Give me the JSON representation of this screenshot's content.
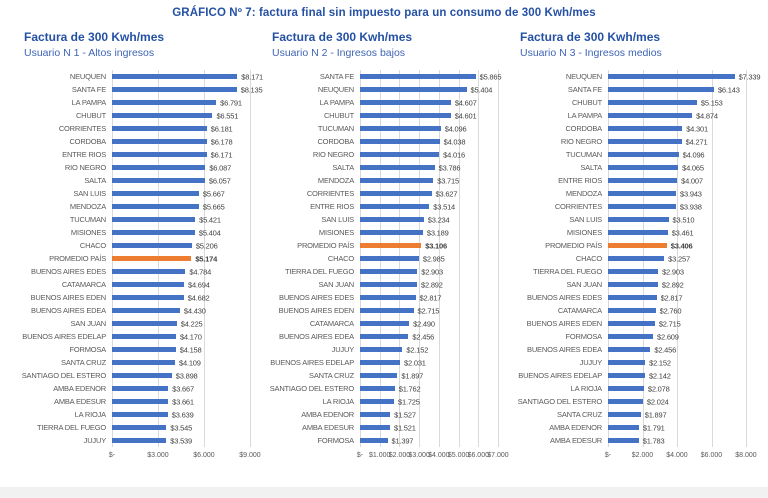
{
  "page": {
    "title": "GRÁFICO Nº 7: factura final sin impuesto para un consumo de 300 Kwh/mes"
  },
  "colors": {
    "bar": "#4472C4",
    "average_bar": "#ED7D31",
    "heading": "#2551A5",
    "subheading": "#3E64B5",
    "grid": "#D9D9D9",
    "category_label": "#595959",
    "value_label": "#3F3F3F",
    "footer_strip": "#F1F1F1"
  },
  "chart_data": [
    {
      "type": "bar",
      "orientation": "horizontal",
      "title": "Factura de 300 Kwh/mes",
      "subtitle": "Usuario N 1 - Altos ingresos",
      "xlim": [
        0,
        9000
      ],
      "grid": true,
      "average_index": 14,
      "ticks": [
        {
          "value": 0,
          "label": "$-"
        },
        {
          "value": 3000,
          "label": "$3.000"
        },
        {
          "value": 6000,
          "label": "$6.000"
        },
        {
          "value": 9000,
          "label": "$9.000"
        }
      ],
      "categories": [
        "NEUQUEN",
        "SANTA FE",
        "LA PAMPA",
        "CHUBUT",
        "CORRIENTES",
        "CORDOBA",
        "ENTRE RIOS",
        "RIO NEGRO",
        "SALTA",
        "SAN LUIS",
        "MENDOZA",
        "TUCUMAN",
        "MISIONES",
        "CHACO",
        "PROMEDIO PAÍS",
        "BUENOS AIRES EDES",
        "CATAMARCA",
        "BUENOS AIRES EDEN",
        "BUENOS AIRES EDEA",
        "SAN JUAN",
        "BUENOS AIRES EDELAP",
        "FORMOSA",
        "SANTA CRUZ",
        "SANTIAGO DEL ESTERO",
        "AMBA EDENOR",
        "AMBA EDESUR",
        "LA RIOJA",
        "TIERRA DEL FUEGO",
        "JUJUY"
      ],
      "values": [
        8171,
        8135,
        6791,
        6551,
        6181,
        6178,
        6171,
        6087,
        6057,
        5667,
        5665,
        5421,
        5404,
        5206,
        5174,
        4784,
        4694,
        4682,
        4430,
        4225,
        4170,
        4158,
        4109,
        3898,
        3667,
        3661,
        3639,
        3545,
        3539
      ],
      "value_labels": [
        "$8.171",
        "$8.135",
        "$6.791",
        "$6.551",
        "$6.181",
        "$6.178",
        "$6.171",
        "$6.087",
        "$6.057",
        "$5.667",
        "$5.665",
        "$5.421",
        "$5.404",
        "$5.206",
        "$5.174",
        "$4.784",
        "$4.694",
        "$4.682",
        "$4.430",
        "$4.225",
        "$4.170",
        "$4.158",
        "$4.109",
        "$3.898",
        "$3.667",
        "$3.661",
        "$3.639",
        "$3.545",
        "$3.539"
      ]
    },
    {
      "type": "bar",
      "orientation": "horizontal",
      "title": "Factura de 300 Kwh/mes",
      "subtitle": "Usuario N 2 - Ingresos bajos",
      "xlim": [
        0,
        7000
      ],
      "grid": true,
      "average_index": 13,
      "ticks": [
        {
          "value": 0,
          "label": "$-"
        },
        {
          "value": 1000,
          "label": "$1.000"
        },
        {
          "value": 2000,
          "label": "$2.000"
        },
        {
          "value": 3000,
          "label": "$3.000"
        },
        {
          "value": 4000,
          "label": "$4.000"
        },
        {
          "value": 5000,
          "label": "$5.000"
        },
        {
          "value": 6000,
          "label": "$6.000"
        },
        {
          "value": 7000,
          "label": "$7.000"
        }
      ],
      "categories": [
        "SANTA FE",
        "NEUQUEN",
        "LA PAMPA",
        "CHUBUT",
        "TUCUMAN",
        "CORDOBA",
        "RIO NEGRO",
        "SALTA",
        "MENDOZA",
        "CORRIENTES",
        "ENTRE RIOS",
        "SAN LUIS",
        "MISIONES",
        "PROMEDIO PAÍS",
        "CHACO",
        "TIERRA DEL FUEGO",
        "SAN JUAN",
        "BUENOS AIRES EDES",
        "BUENOS AIRES EDEN",
        "CATAMARCA",
        "BUENOS AIRES EDEA",
        "JUJUY",
        "BUENOS AIRES EDELAP",
        "SANTA CRUZ",
        "SANTIAGO DEL ESTERO",
        "LA RIOJA",
        "AMBA EDENOR",
        "AMBA EDESUR",
        "FORMOSA"
      ],
      "values": [
        5865,
        5404,
        4607,
        4601,
        4096,
        4038,
        4016,
        3786,
        3715,
        3627,
        3514,
        3234,
        3189,
        3106,
        2985,
        2903,
        2892,
        2817,
        2715,
        2490,
        2456,
        2152,
        2031,
        1897,
        1762,
        1725,
        1527,
        1521,
        1397
      ],
      "value_labels": [
        "$5.865",
        "$5.404",
        "$4.607",
        "$4.601",
        "$4.096",
        "$4.038",
        "$4.016",
        "$3.786",
        "$3.715",
        "$3.627",
        "$3.514",
        "$3.234",
        "$3.189",
        "$3.106",
        "$2.985",
        "$2.903",
        "$2.892",
        "$2.817",
        "$2.715",
        "$2.490",
        "$2.456",
        "$2.152",
        "$2.031",
        "$1.897",
        "$1.762",
        "$1.725",
        "$1.527",
        "$1.521",
        "$1.397"
      ]
    },
    {
      "type": "bar",
      "orientation": "horizontal",
      "title": "Factura de 300 Kwh/mes",
      "subtitle": "Usuario N 3 - Ingresos medios",
      "xlim": [
        0,
        8000
      ],
      "grid": true,
      "average_index": 13,
      "ticks": [
        {
          "value": 0,
          "label": "$-"
        },
        {
          "value": 2000,
          "label": "$2.000"
        },
        {
          "value": 4000,
          "label": "$4.000"
        },
        {
          "value": 6000,
          "label": "$6.000"
        },
        {
          "value": 8000,
          "label": "$8.000"
        }
      ],
      "categories": [
        "NEUQUEN",
        "SANTA FE",
        "CHUBUT",
        "LA PAMPA",
        "CORDOBA",
        "RIO NEGRO",
        "TUCUMAN",
        "SALTA",
        "ENTRE RIOS",
        "MENDOZA",
        "CORRIENTES",
        "SAN LUIS",
        "MISIONES",
        "PROMEDIO PAÍS",
        "CHACO",
        "TIERRA DEL FUEGO",
        "SAN JUAN",
        "BUENOS AIRES EDES",
        "CATAMARCA",
        "BUENOS AIRES EDEN",
        "FORMOSA",
        "BUENOS AIRES EDEA",
        "JUJUY",
        "BUENOS AIRES EDELAP",
        "LA RIOJA",
        "SANTIAGO DEL ESTERO",
        "SANTA CRUZ",
        "AMBA EDENOR",
        "AMBA EDESUR"
      ],
      "values": [
        7339,
        6143,
        5153,
        4874,
        4301,
        4271,
        4096,
        4065,
        4007,
        3943,
        3938,
        3510,
        3461,
        3406,
        3257,
        2903,
        2892,
        2817,
        2760,
        2715,
        2609,
        2456,
        2152,
        2142,
        2078,
        2024,
        1897,
        1791,
        1783
      ],
      "value_labels": [
        "$7.339",
        "$6.143",
        "$5.153",
        "$4.874",
        "$4.301",
        "$4.271",
        "$4.096",
        "$4.065",
        "$4.007",
        "$3.943",
        "$3.938",
        "$3.510",
        "$3.461",
        "$3.406",
        "$3.257",
        "$2.903",
        "$2.892",
        "$2.817",
        "$2.760",
        "$2.715",
        "$2.609",
        "$2.456",
        "$2.152",
        "$2.142",
        "$2.078",
        "$2.024",
        "$1.897",
        "$1.791",
        "$1.783"
      ]
    }
  ]
}
